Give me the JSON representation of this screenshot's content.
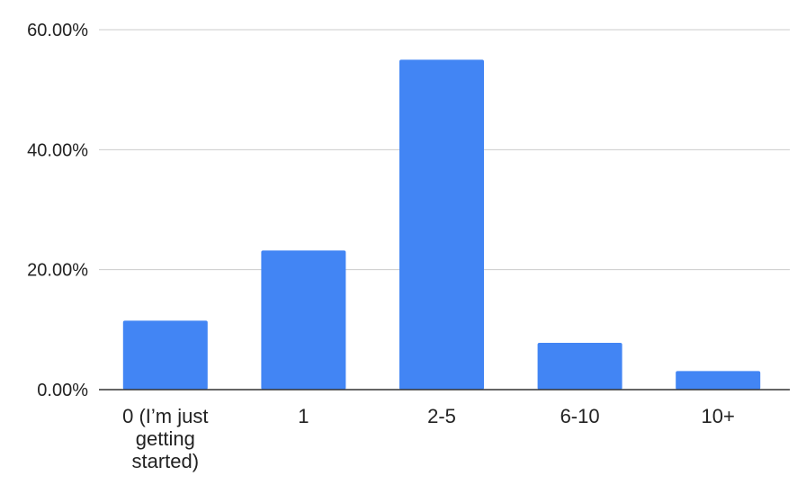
{
  "chart_data": {
    "type": "bar",
    "title": "",
    "xlabel": "",
    "ylabel": "",
    "categories": [
      [
        "0 (I’m just",
        "getting",
        "started)"
      ],
      [
        "1"
      ],
      [
        "2-5"
      ],
      [
        "6-10"
      ],
      [
        "10+"
      ]
    ],
    "values": [
      11.5,
      23.2,
      55.0,
      7.8,
      3.1
    ],
    "ylim": [
      0,
      60
    ],
    "yticks": [
      {
        "value": 0,
        "label": "0.00%"
      },
      {
        "value": 20,
        "label": "20.00%"
      },
      {
        "value": 40,
        "label": "40.00%"
      },
      {
        "value": 60,
        "label": "60.00%"
      }
    ],
    "grid": true,
    "bar_color": "#4285f4"
  }
}
